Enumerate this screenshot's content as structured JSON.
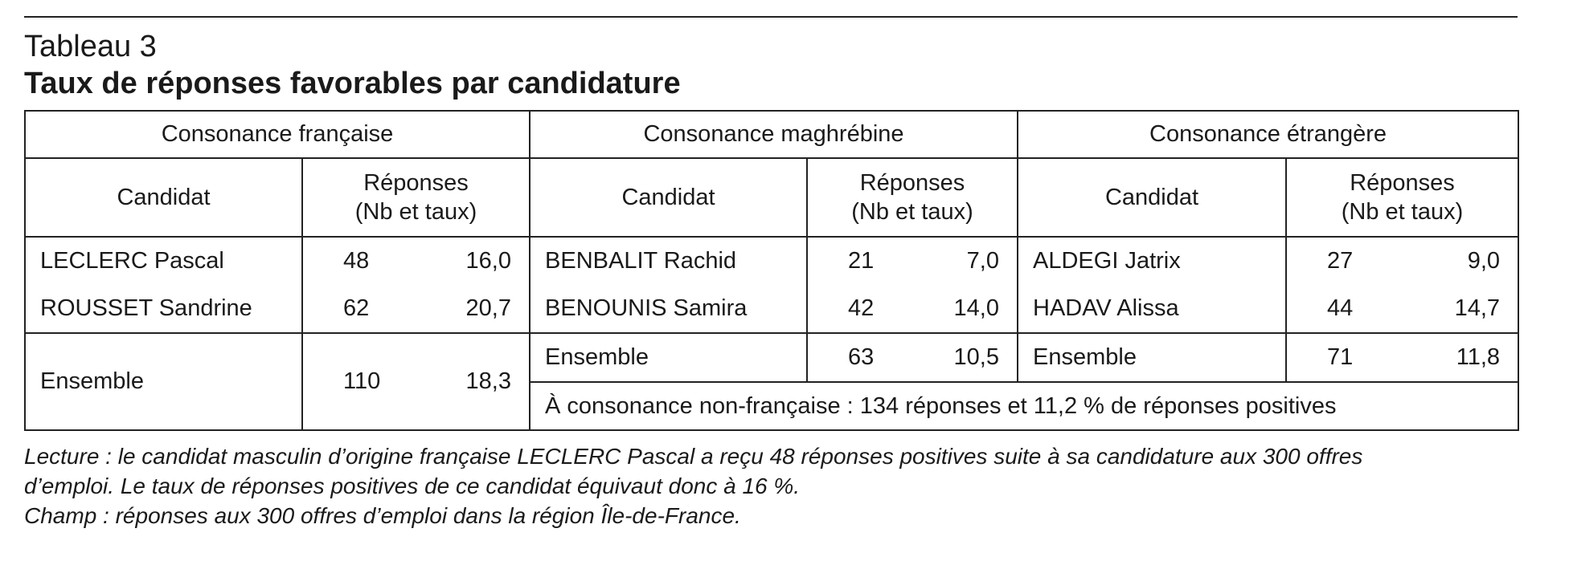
{
  "header": {
    "label": "Tableau 3",
    "title": "Taux de réponses favorables par candidature"
  },
  "table": {
    "groups": [
      "Consonance française",
      "Consonance maghrébine",
      "Consonance étrangère"
    ],
    "col_candidat": "Candidat",
    "col_reponses_line1": "Réponses",
    "col_reponses_line2": "(Nb et taux)",
    "francaise": {
      "rows": [
        {
          "name": "LECLERC Pascal",
          "nb": "48",
          "taux": "16,0"
        },
        {
          "name": "ROUSSET Sandrine",
          "nb": "62",
          "taux": "20,7"
        }
      ],
      "ensemble": {
        "name": "Ensemble",
        "nb": "110",
        "taux": "18,3"
      }
    },
    "maghrebine": {
      "rows": [
        {
          "name": "BENBALIT Rachid",
          "nb": "21",
          "taux": "7,0"
        },
        {
          "name": "BENOUNIS Samira",
          "nb": "42",
          "taux": "14,0"
        }
      ],
      "ensemble": {
        "name": "Ensemble",
        "nb": "63",
        "taux": "10,5"
      }
    },
    "etrangere": {
      "rows": [
        {
          "name": "ALDEGI Jatrix",
          "nb": "27",
          "taux": "9,0"
        },
        {
          "name": "HADAV Alissa",
          "nb": "44",
          "taux": "14,7"
        }
      ],
      "ensemble": {
        "name": "Ensemble",
        "nb": "71",
        "taux": "11,8"
      }
    },
    "non_francaise_summary": "À consonance non-française : 134 réponses et 11,2 % de réponses positives"
  },
  "notes": {
    "lecture_line1": "Lecture : le candidat masculin d’origine française LECLERC Pascal a reçu 48 réponses positives suite à sa candidature aux 300 offres",
    "lecture_line2": "d’emploi. Le taux de réponses positives de ce candidat équivaut donc à 16 %.",
    "champ": "Champ : réponses aux 300 offres d’emploi dans la région Île-de-France."
  }
}
